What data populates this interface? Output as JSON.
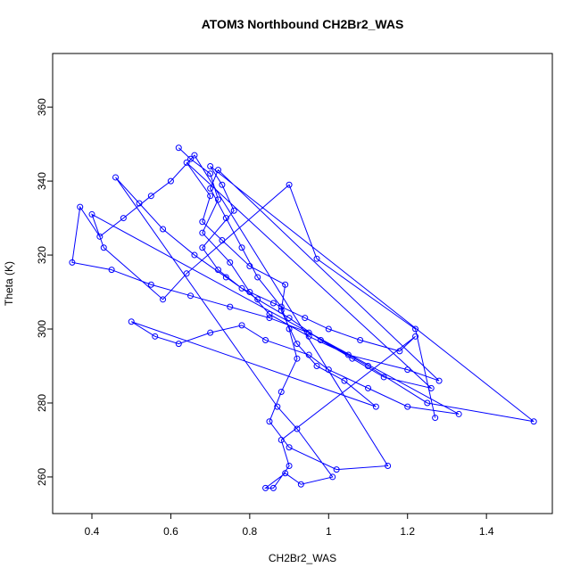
{
  "chart_data": {
    "type": "line",
    "marker": "circle",
    "title": "ATOM3 Northbound CH2Br2_WAS",
    "x_label": "CH2Br2_WAS",
    "y_label": "Theta (K)",
    "color": "#0000ff",
    "xlim": [
      0.3005,
      1.567
    ],
    "ylim": [
      250.1,
      374.5
    ],
    "xticks": [
      0.4,
      0.6,
      0.8,
      1.0,
      1.2,
      1.4
    ],
    "yticks": [
      260,
      280,
      300,
      320,
      340,
      360
    ],
    "x": [
      0.62,
      0.65,
      0.7,
      0.72,
      0.68,
      0.75,
      0.8,
      0.85,
      0.95,
      1.05,
      1.2,
      1.28,
      0.72,
      0.7,
      0.74,
      0.78,
      0.82,
      0.88,
      0.9,
      0.92,
      0.88,
      0.85,
      0.9,
      1.02,
      1.15,
      0.66,
      0.6,
      0.55,
      0.48,
      0.42,
      0.37,
      0.35,
      0.45,
      0.55,
      0.65,
      0.75,
      0.85,
      0.95,
      1.1,
      1.25,
      1.52,
      0.7,
      0.73,
      0.76,
      0.68,
      0.72,
      0.78,
      0.86,
      0.94,
      1.0,
      1.08,
      1.18,
      1.22,
      0.88,
      0.9,
      0.86,
      0.84,
      0.89,
      0.93,
      1.01,
      0.92,
      0.87,
      0.46,
      0.52,
      0.58,
      0.66,
      0.74,
      0.82,
      0.9,
      0.98,
      1.06,
      1.14,
      1.26,
      0.64,
      0.7,
      0.68,
      0.73,
      0.8,
      0.89,
      0.88,
      0.92,
      0.97,
      1.04,
      1.12,
      0.5,
      0.56,
      0.62,
      0.7,
      0.78,
      0.84,
      0.95,
      1.0,
      1.1,
      1.2,
      1.33,
      0.4,
      0.43,
      0.58,
      0.64,
      0.9,
      0.97,
      1.22,
      1.27
    ],
    "values": [
      349,
      346,
      342,
      335,
      326,
      318,
      310,
      304,
      298,
      293,
      289,
      286,
      343,
      338,
      330,
      322,
      314,
      306,
      300,
      292,
      283,
      275,
      268,
      262,
      263,
      347,
      340,
      336,
      330,
      325,
      333,
      318,
      316,
      312,
      309,
      306,
      303,
      299,
      290,
      280,
      275,
      344,
      339,
      332,
      322,
      316,
      311,
      307,
      303,
      300,
      297,
      294,
      298,
      270,
      263,
      257,
      257,
      261,
      258,
      260,
      273,
      279,
      341,
      334,
      327,
      320,
      314,
      308,
      303,
      297,
      292,
      287,
      284,
      345,
      336,
      329,
      324,
      317,
      312,
      305,
      296,
      290,
      286,
      279,
      302,
      298,
      296,
      299,
      301,
      297,
      293,
      289,
      284,
      279,
      277,
      331,
      322,
      308,
      315,
      339,
      319,
      300,
      276
    ]
  }
}
